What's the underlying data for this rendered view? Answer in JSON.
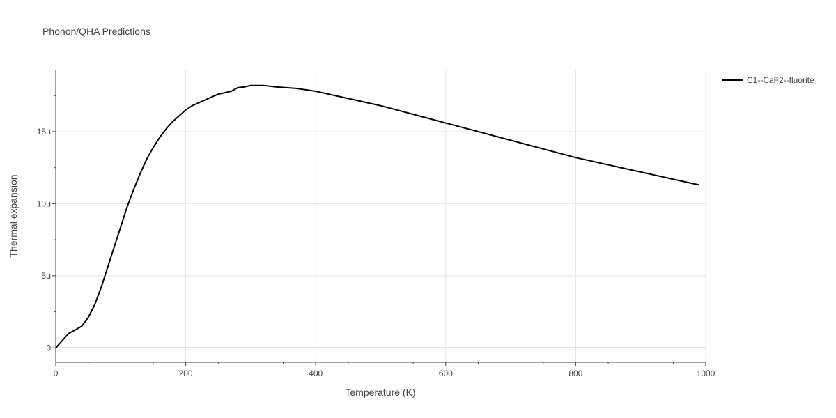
{
  "chart_data": {
    "type": "line",
    "title": "Phonon/QHA Predictions",
    "xlabel": "Temperature (K)",
    "ylabel": "Thermal expansion",
    "xlim": [
      0,
      1000
    ],
    "ylim": [
      -1e-06,
      1.93e-05
    ],
    "x_ticks": [
      {
        "value": 0,
        "label": "0"
      },
      {
        "value": 200,
        "label": "200"
      },
      {
        "value": 400,
        "label": "400"
      },
      {
        "value": 600,
        "label": "600"
      },
      {
        "value": 800,
        "label": "800"
      },
      {
        "value": 1000,
        "label": "1000"
      }
    ],
    "y_ticks": [
      {
        "value": 0,
        "label": "0"
      },
      {
        "value": 5e-06,
        "label": "5μ"
      },
      {
        "value": 1e-05,
        "label": "10μ"
      },
      {
        "value": 1.5e-05,
        "label": "15μ"
      }
    ],
    "grid": true,
    "legend_position": "top-right",
    "series": [
      {
        "name": "C1--CaF2--fluorite",
        "color": "#000000",
        "x": [
          0,
          10,
          20,
          30,
          40,
          50,
          60,
          70,
          80,
          90,
          100,
          110,
          120,
          130,
          140,
          150,
          160,
          170,
          180,
          190,
          200,
          210,
          220,
          230,
          240,
          250,
          260,
          270,
          280,
          290,
          300,
          320,
          340,
          370,
          400,
          420,
          450,
          480,
          500,
          550,
          600,
          650,
          700,
          750,
          800,
          850,
          900,
          950,
          990
        ],
        "y": [
          0,
          5e-07,
          1e-06,
          1.25e-06,
          1.5e-06,
          2.1e-06,
          3e-06,
          4.2e-06,
          5.6e-06,
          7e-06,
          8.4e-06,
          9.8e-06,
          1.1e-05,
          1.21e-05,
          1.31e-05,
          1.39e-05,
          1.46e-05,
          1.52e-05,
          1.57e-05,
          1.61e-05,
          1.65e-05,
          1.68e-05,
          1.7e-05,
          1.72e-05,
          1.74e-05,
          1.76e-05,
          1.77e-05,
          1.78e-05,
          1.805e-05,
          1.81e-05,
          1.82e-05,
          1.82e-05,
          1.81e-05,
          1.8e-05,
          1.78e-05,
          1.76e-05,
          1.73e-05,
          1.7e-05,
          1.68e-05,
          1.62e-05,
          1.56e-05,
          1.5e-05,
          1.44e-05,
          1.38e-05,
          1.32e-05,
          1.27e-05,
          1.22e-05,
          1.17e-05,
          1.13e-05
        ]
      }
    ]
  }
}
